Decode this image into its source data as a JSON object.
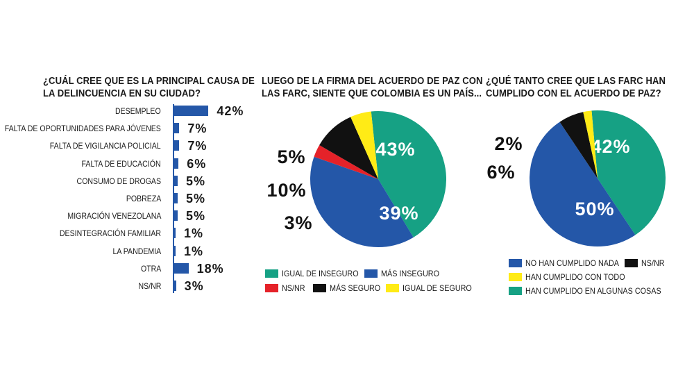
{
  "colors": {
    "blue": "#2457a8",
    "green": "#16a184",
    "red": "#e52229",
    "black": "#111111",
    "yellow": "#ffeb16"
  },
  "chart_data": [
    {
      "type": "bar",
      "orientation": "horizontal",
      "title": "¿Cuál cree que es la principal causa de la delincuencia en su ciudad?",
      "title_lines": [
        "¿CUÁL CREE QUE ES LA PRINCIPAL CAUSA DE",
        "LA DELINCUENCIA EN SU CIUDAD?"
      ],
      "categories": [
        "DESEMPLEO",
        "FALTA DE OPORTUNIDADES PARA JÓVENES",
        "FALTA DE VIGILANCIA POLICIAL",
        "FALTA DE EDUCACIÓN",
        "CONSUMO DE DROGAS",
        "POBREZA",
        "MIGRACIÓN VENEZOLANA",
        "DESINTEGRACIÓN FAMILIAR",
        "LA PANDEMIA",
        "OTRA",
        "NS/NR"
      ],
      "values": [
        42,
        7,
        7,
        6,
        5,
        5,
        5,
        1,
        1,
        18,
        3
      ],
      "value_labels": [
        "42%",
        "7%",
        "7%",
        "6%",
        "5%",
        "5%",
        "5%",
        "1%",
        "1%",
        "18%",
        "3%"
      ],
      "color": "#2457a8"
    },
    {
      "type": "pie",
      "title": "Luego de la firma del acuerdo de paz con las FARC, siente que Colombia es un país...",
      "title_lines": [
        "LUEGO DE LA FIRMA DEL ACUERDO DE PAZ CON",
        "LAS FARC, SIENTE QUE COLOMBIA ES UN PAÍS..."
      ],
      "slices": [
        {
          "name": "IGUAL DE INSEGURO",
          "value": 43,
          "label": "43%",
          "color": "#16a184"
        },
        {
          "name": "MÁS INSEGURO",
          "value": 39,
          "label": "39%",
          "color": "#2457a8"
        },
        {
          "name": "NS/NR",
          "value": 3,
          "label": "3%",
          "color": "#e52229"
        },
        {
          "name": "MÁS SEGURO",
          "value": 10,
          "label": "10%",
          "color": "#111111"
        },
        {
          "name": "IGUAL DE SEGURO",
          "value": 5,
          "label": "5%",
          "color": "#ffeb16"
        }
      ],
      "legend_position": "bottom"
    },
    {
      "type": "pie",
      "title": "¿Qué tanto cree que las FARC han cumplido con el acuerdo de paz?",
      "title_lines": [
        "¿QUÉ TANTO CREE QUE LAS FARC HAN",
        "CUMPLIDO CON EL ACUERDO DE PAZ?"
      ],
      "slices": [
        {
          "name": "HAN CUMPLIDO EN ALGUNAS COSAS",
          "value": 42,
          "label": "42%",
          "color": "#16a184"
        },
        {
          "name": "NO HAN CUMPLIDO NADA",
          "value": 50,
          "label": "50%",
          "color": "#2457a8"
        },
        {
          "name": "NS/NR",
          "value": 6,
          "label": "6%",
          "color": "#111111"
        },
        {
          "name": "HAN CUMPLIDO CON TODO",
          "value": 2,
          "label": "2%",
          "color": "#ffeb16"
        }
      ],
      "legend_order": [
        "NO HAN CUMPLIDO NADA",
        "NS/NR",
        "HAN CUMPLIDO CON TODO",
        "HAN CUMPLIDO EN ALGUNAS COSAS"
      ],
      "legend_position": "bottom"
    }
  ]
}
